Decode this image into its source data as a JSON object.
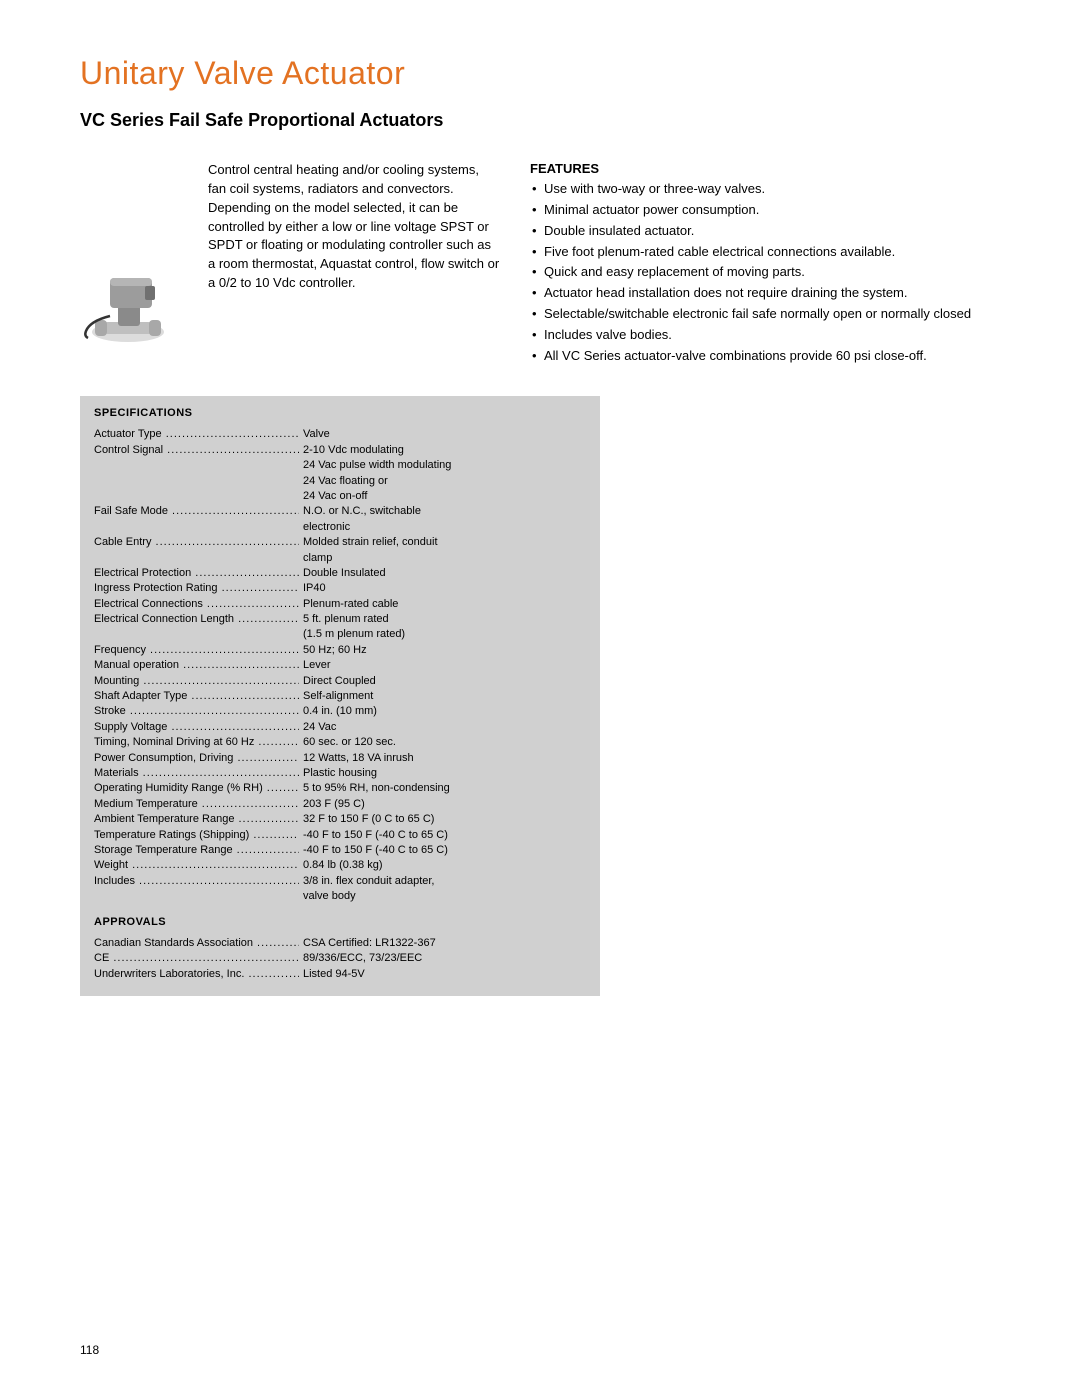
{
  "title": "Unitary Valve Actuator",
  "subtitle": "VC Series Fail Safe Proportional Actuators",
  "intro": "Control central heating and/or cooling systems, fan coil systems, radiators and convectors. Depending on the model selected, it can be controlled by either a low or line voltage SPST or SPDT or floating or modulating controller such as a room thermostat, Aquastat control, flow switch or a 0/2 to 10 Vdc controller.",
  "features_heading": "FEATURES",
  "features": [
    "Use with two-way or three-way valves.",
    "Minimal actuator power consumption.",
    "Double insulated actuator.",
    "Five foot plenum-rated cable electrical connections available.",
    "Quick and easy replacement of moving parts.",
    "Actuator head installation does not require draining the system.",
    "Selectable/switchable electronic fail safe normally open or normally closed",
    "Includes valve bodies.",
    "All VC Series actuator-valve combinations provide 60 psi close-off."
  ],
  "spec_heading": "SPECIFICATIONS",
  "specs": [
    {
      "label": "Actuator Type",
      "value": "Valve"
    },
    {
      "label": "Control Signal",
      "value": "2-10 Vdc modulating",
      "cont": [
        "24 Vac pulse width modulating",
        "24 Vac floating or",
        "24 Vac on-off"
      ]
    },
    {
      "label": "Fail Safe Mode",
      "value": "N.O. or N.C., switchable",
      "cont": [
        "electronic"
      ]
    },
    {
      "label": "Cable Entry",
      "value": "Molded strain relief, conduit",
      "cont": [
        "clamp"
      ]
    },
    {
      "label": "Electrical Protection",
      "value": "Double Insulated"
    },
    {
      "label": "Ingress Protection Rating",
      "value": "IP40"
    },
    {
      "label": "Electrical Connections",
      "value": "Plenum-rated cable"
    },
    {
      "label": "Electrical Connection Length",
      "value": "5 ft. plenum rated",
      "cont": [
        "(1.5 m plenum rated)"
      ]
    },
    {
      "label": "Frequency",
      "value": "50 Hz; 60 Hz"
    },
    {
      "label": "Manual operation",
      "value": "Lever"
    },
    {
      "label": "Mounting",
      "value": "Direct Coupled"
    },
    {
      "label": "Shaft Adapter Type",
      "value": "Self-alignment"
    },
    {
      "label": "Stroke",
      "value": "0.4 in. (10 mm)"
    },
    {
      "label": "Supply Voltage",
      "value": "24 Vac"
    },
    {
      "label": "Timing, Nominal Driving at 60 Hz",
      "value": "60 sec. or 120 sec."
    },
    {
      "label": "Power Consumption, Driving",
      "value": "12 Watts, 18 VA inrush"
    },
    {
      "label": "Materials",
      "value": "Plastic housing"
    },
    {
      "label": "Operating Humidity Range (% RH)",
      "value": "5 to 95% RH, non-condensing"
    },
    {
      "label": "Medium Temperature",
      "value": "203 F (95 C)"
    },
    {
      "label": "Ambient Temperature Range",
      "value": "32 F to 150 F (0 C to 65 C)"
    },
    {
      "label": "Temperature Ratings (Shipping)",
      "value": "-40 F to 150 F (-40 C to 65 C)"
    },
    {
      "label": "Storage Temperature Range",
      "value": "-40 F to 150 F (-40 C to 65 C)"
    },
    {
      "label": "Weight",
      "value": "0.84 lb (0.38 kg)"
    },
    {
      "label": "Includes",
      "value": "3/8 in. flex conduit adapter,",
      "cont": [
        "valve body"
      ]
    }
  ],
  "approvals_heading": "APPROVALS",
  "approvals": [
    {
      "label": "Canadian Standards Association",
      "value": "CSA Certified: LR1322-367"
    },
    {
      "label": "CE",
      "value": "89/336/ECC, 73/23/EEC"
    },
    {
      "label": "Underwriters Laboratories, Inc.",
      "value": "Listed 94-5V"
    }
  ],
  "page_number": "118",
  "colors": {
    "title": "#e37222",
    "spec_bg": "#d0d0d0",
    "text": "#000000"
  }
}
